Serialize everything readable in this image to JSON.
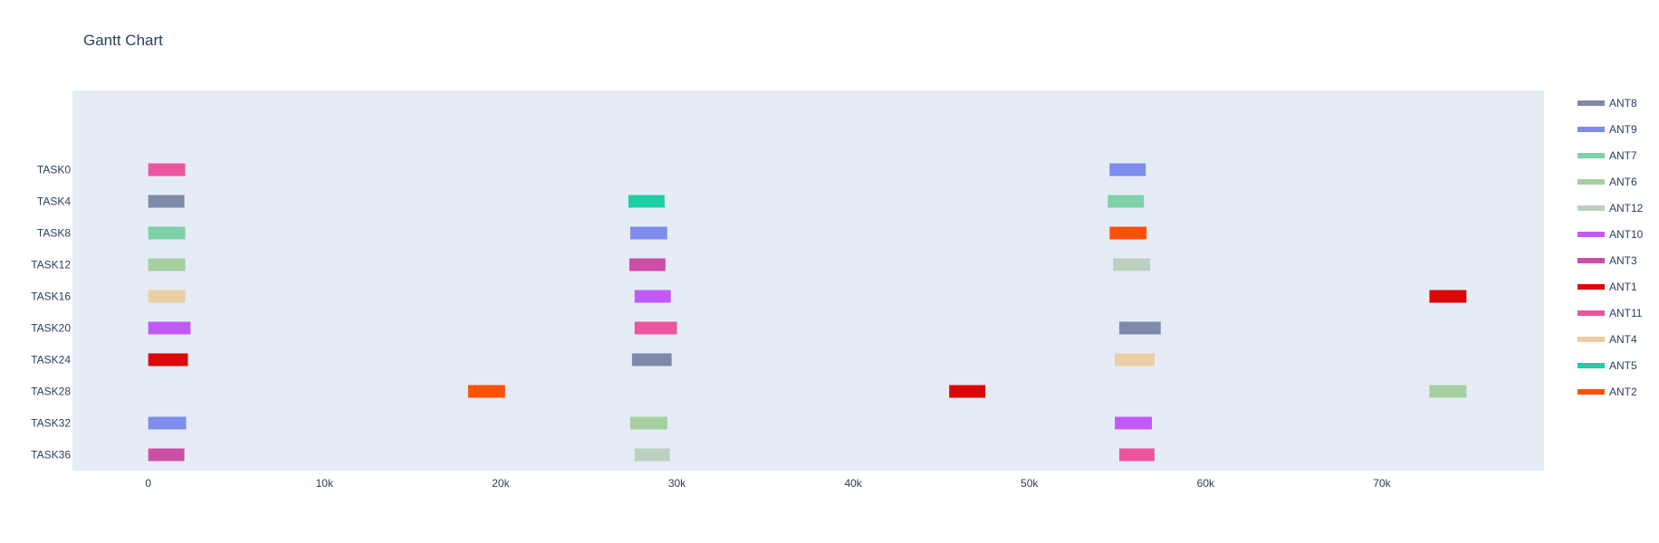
{
  "chart_data": {
    "type": "bar",
    "orientation": "horizontal-gantt",
    "title": "Gantt Chart",
    "xlabel": "",
    "ylabel": "",
    "xlim": [
      -4300,
      79200
    ],
    "x_tick_values": [
      0,
      10000,
      20000,
      30000,
      40000,
      50000,
      60000,
      70000
    ],
    "x_tick_labels": [
      "0",
      "10k",
      "20k",
      "30k",
      "40k",
      "50k",
      "60k",
      "70k"
    ],
    "categories": [
      "TASK0",
      "TASK4",
      "TASK8",
      "TASK12",
      "TASK16",
      "TASK20",
      "TASK24",
      "TASK28",
      "TASK32",
      "TASK36"
    ],
    "category_range_extra_top": 2,
    "grid": false,
    "plot_background": "#e5ecf6",
    "legend_position": "right",
    "series": [
      {
        "name": "ANT8",
        "color": "#7f8aa8",
        "tasks": [
          {
            "task": "TASK4",
            "start": 0,
            "end": 2050
          },
          {
            "task": "TASK20",
            "start": 55100,
            "end": 57450
          },
          {
            "task": "TASK24",
            "start": 27450,
            "end": 29700
          }
        ]
      },
      {
        "name": "ANT9",
        "color": "#7e8cec",
        "tasks": [
          {
            "task": "TASK0",
            "start": 54550,
            "end": 56600
          },
          {
            "task": "TASK8",
            "start": 27350,
            "end": 29450
          },
          {
            "task": "TASK32",
            "start": 0,
            "end": 2150
          }
        ]
      },
      {
        "name": "ANT7",
        "color": "#7ed1a8",
        "tasks": [
          {
            "task": "TASK4",
            "start": 54450,
            "end": 56500
          },
          {
            "task": "TASK8",
            "start": 0,
            "end": 2100
          }
        ]
      },
      {
        "name": "ANT6",
        "color": "#a6cfa0",
        "tasks": [
          {
            "task": "TASK12",
            "start": 0,
            "end": 2100
          },
          {
            "task": "TASK28",
            "start": 72700,
            "end": 74800
          },
          {
            "task": "TASK32",
            "start": 27350,
            "end": 29450
          }
        ]
      },
      {
        "name": "ANT12",
        "color": "#bdd0c0",
        "tasks": [
          {
            "task": "TASK12",
            "start": 54750,
            "end": 56850
          },
          {
            "task": "TASK36",
            "start": 27600,
            "end": 29600
          }
        ]
      },
      {
        "name": "ANT10",
        "color": "#c15af5",
        "tasks": [
          {
            "task": "TASK16",
            "start": 27600,
            "end": 29650
          },
          {
            "task": "TASK20",
            "start": 0,
            "end": 2400
          },
          {
            "task": "TASK32",
            "start": 54850,
            "end": 56950
          }
        ]
      },
      {
        "name": "ANT3",
        "color": "#cc4fa6",
        "tasks": [
          {
            "task": "TASK12",
            "start": 27300,
            "end": 29350
          },
          {
            "task": "TASK36",
            "start": 0,
            "end": 2050
          }
        ]
      },
      {
        "name": "ANT1",
        "color": "#dc0707",
        "tasks": [
          {
            "task": "TASK16",
            "start": 72700,
            "end": 74800
          },
          {
            "task": "TASK24",
            "start": 0,
            "end": 2250
          },
          {
            "task": "TASK28",
            "start": 45450,
            "end": 47500
          }
        ]
      },
      {
        "name": "ANT11",
        "color": "#ec559f",
        "tasks": [
          {
            "task": "TASK0",
            "start": 0,
            "end": 2100
          },
          {
            "task": "TASK20",
            "start": 27600,
            "end": 30000
          },
          {
            "task": "TASK36",
            "start": 55100,
            "end": 57100
          }
        ]
      },
      {
        "name": "ANT4",
        "color": "#ebcea6",
        "tasks": [
          {
            "task": "TASK16",
            "start": 0,
            "end": 2100
          },
          {
            "task": "TASK24",
            "start": 54850,
            "end": 57100
          }
        ]
      },
      {
        "name": "ANT5",
        "color": "#1ecfa6",
        "tasks": [
          {
            "task": "TASK4",
            "start": 27250,
            "end": 29300
          }
        ]
      },
      {
        "name": "ANT2",
        "color": "#fe5108",
        "tasks": [
          {
            "task": "TASK8",
            "start": 54550,
            "end": 56650
          },
          {
            "task": "TASK28",
            "start": 18150,
            "end": 20250
          }
        ]
      }
    ]
  }
}
